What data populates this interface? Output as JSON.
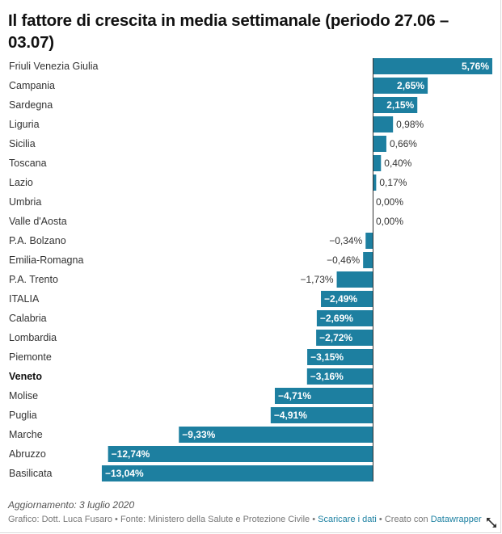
{
  "chart_data": {
    "type": "bar",
    "orientation": "horizontal",
    "title": "Il fattore di crescita in media settimanale (periodo 27.06 – 03.07)",
    "xlabel": "",
    "ylabel": "",
    "unit": "%",
    "bar_color": "#1d7fa0",
    "xlim": [
      -13.04,
      5.76
    ],
    "grid": false,
    "legend": "none",
    "highlighted_category": "Veneto",
    "categories": [
      "Friuli Venezia Giulia",
      "Campania",
      "Sardegna",
      "Liguria",
      "Sicilia",
      "Toscana",
      "Lazio",
      "Umbria",
      "Valle d'Aosta",
      "P.A. Bolzano",
      "Emilia-Romagna",
      "P.A. Trento",
      "ITALIA",
      "Calabria",
      "Lombardia",
      "Piemonte",
      "Veneto",
      "Molise",
      "Puglia",
      "Marche",
      "Abruzzo",
      "Basilicata"
    ],
    "values": [
      5.76,
      2.65,
      2.15,
      0.98,
      0.66,
      0.4,
      0.17,
      0.0,
      0.0,
      -0.34,
      -0.46,
      -1.73,
      -2.49,
      -2.69,
      -2.72,
      -3.15,
      -3.16,
      -4.71,
      -4.91,
      -9.33,
      -12.74,
      -13.04
    ],
    "value_labels": [
      "5,76%",
      "2,65%",
      "2,15%",
      "0,98%",
      "0,66%",
      "0,40%",
      "0,17%",
      "0,00%",
      "0,00%",
      "−0,34%",
      "−0,46%",
      "−1,73%",
      "−2,49%",
      "−2,69%",
      "−2,72%",
      "−3,15%",
      "−3,16%",
      "−4,71%",
      "−4,91%",
      "−9,33%",
      "−12,74%",
      "−13,04%"
    ]
  },
  "notes": "Aggiornamento: 3 luglio 2020",
  "footer": {
    "prefix": "Grafico: Dott. Luca Fusaro • Fonte: Ministero della Salute e Protezione Civile • ",
    "download_link": "Scaricare i dati",
    "middle": " • Creato con ",
    "datawrapper_link": "Datawrapper"
  },
  "icons": {
    "expand": "expand-arrows-icon"
  }
}
